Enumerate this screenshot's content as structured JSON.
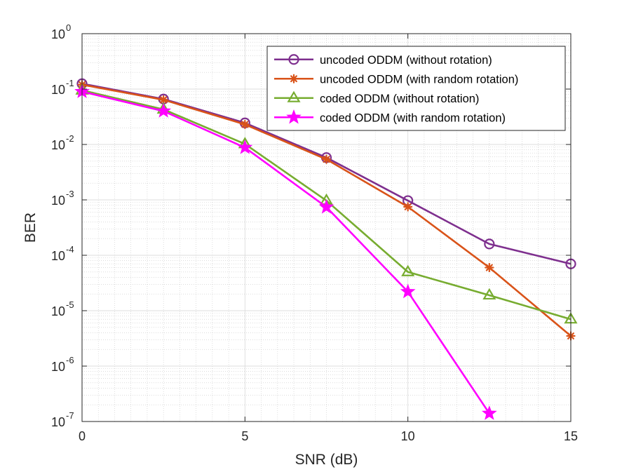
{
  "chart_data": {
    "type": "line",
    "xlabel": "SNR (dB)",
    "ylabel": "BER",
    "xlim": [
      0,
      15
    ],
    "ylim": [
      1e-07,
      1
    ],
    "yscale": "log",
    "grid": true,
    "legend_position": "top-right",
    "x_ticks": [
      {
        "value": 0,
        "label": "0"
      },
      {
        "value": 5,
        "label": "5"
      },
      {
        "value": 10,
        "label": "10"
      },
      {
        "value": 15,
        "label": "15"
      }
    ],
    "y_ticks": [
      {
        "value": 1,
        "base": "10",
        "exp": "0"
      },
      {
        "value": 0.1,
        "base": "10",
        "exp": "-1"
      },
      {
        "value": 0.01,
        "base": "10",
        "exp": "-2"
      },
      {
        "value": 0.001,
        "base": "10",
        "exp": "-3"
      },
      {
        "value": 0.0001,
        "base": "10",
        "exp": "-4"
      },
      {
        "value": 1e-05,
        "base": "10",
        "exp": "-5"
      },
      {
        "value": 1e-06,
        "base": "10",
        "exp": "-6"
      },
      {
        "value": 1e-07,
        "base": "10",
        "exp": "-7"
      }
    ],
    "series": [
      {
        "name": "uncoded ODDM (without rotation)",
        "color": "#7E2F8E",
        "marker": "circle",
        "x": [
          0,
          2.5,
          5,
          7.5,
          10,
          12.5,
          15
        ],
        "values": [
          0.125,
          0.066,
          0.0245,
          0.0058,
          0.00097,
          0.00016,
          7e-05
        ]
      },
      {
        "name": "uncoded ODDM (with random rotation)",
        "color": "#D95319",
        "marker": "asterisk",
        "x": [
          0,
          2.5,
          5,
          7.5,
          10,
          12.5,
          15
        ],
        "values": [
          0.12,
          0.064,
          0.023,
          0.0054,
          0.00075,
          6e-05,
          3.5e-06
        ]
      },
      {
        "name": "coded ODDM (without rotation)",
        "color": "#77AC30",
        "marker": "triangle",
        "x": [
          0,
          2.5,
          5,
          7.5,
          10,
          12.5,
          15
        ],
        "values": [
          0.095,
          0.043,
          0.0102,
          0.00097,
          5e-05,
          1.9e-05,
          7e-06
        ]
      },
      {
        "name": "coded ODDM (with random rotation)",
        "color": "#FF00FF",
        "marker": "pentagram",
        "x": [
          0,
          2.5,
          5,
          7.5,
          10,
          12.5
        ],
        "values": [
          0.09,
          0.04,
          0.0088,
          0.00074,
          2.2e-05,
          1.4e-07
        ]
      }
    ]
  }
}
